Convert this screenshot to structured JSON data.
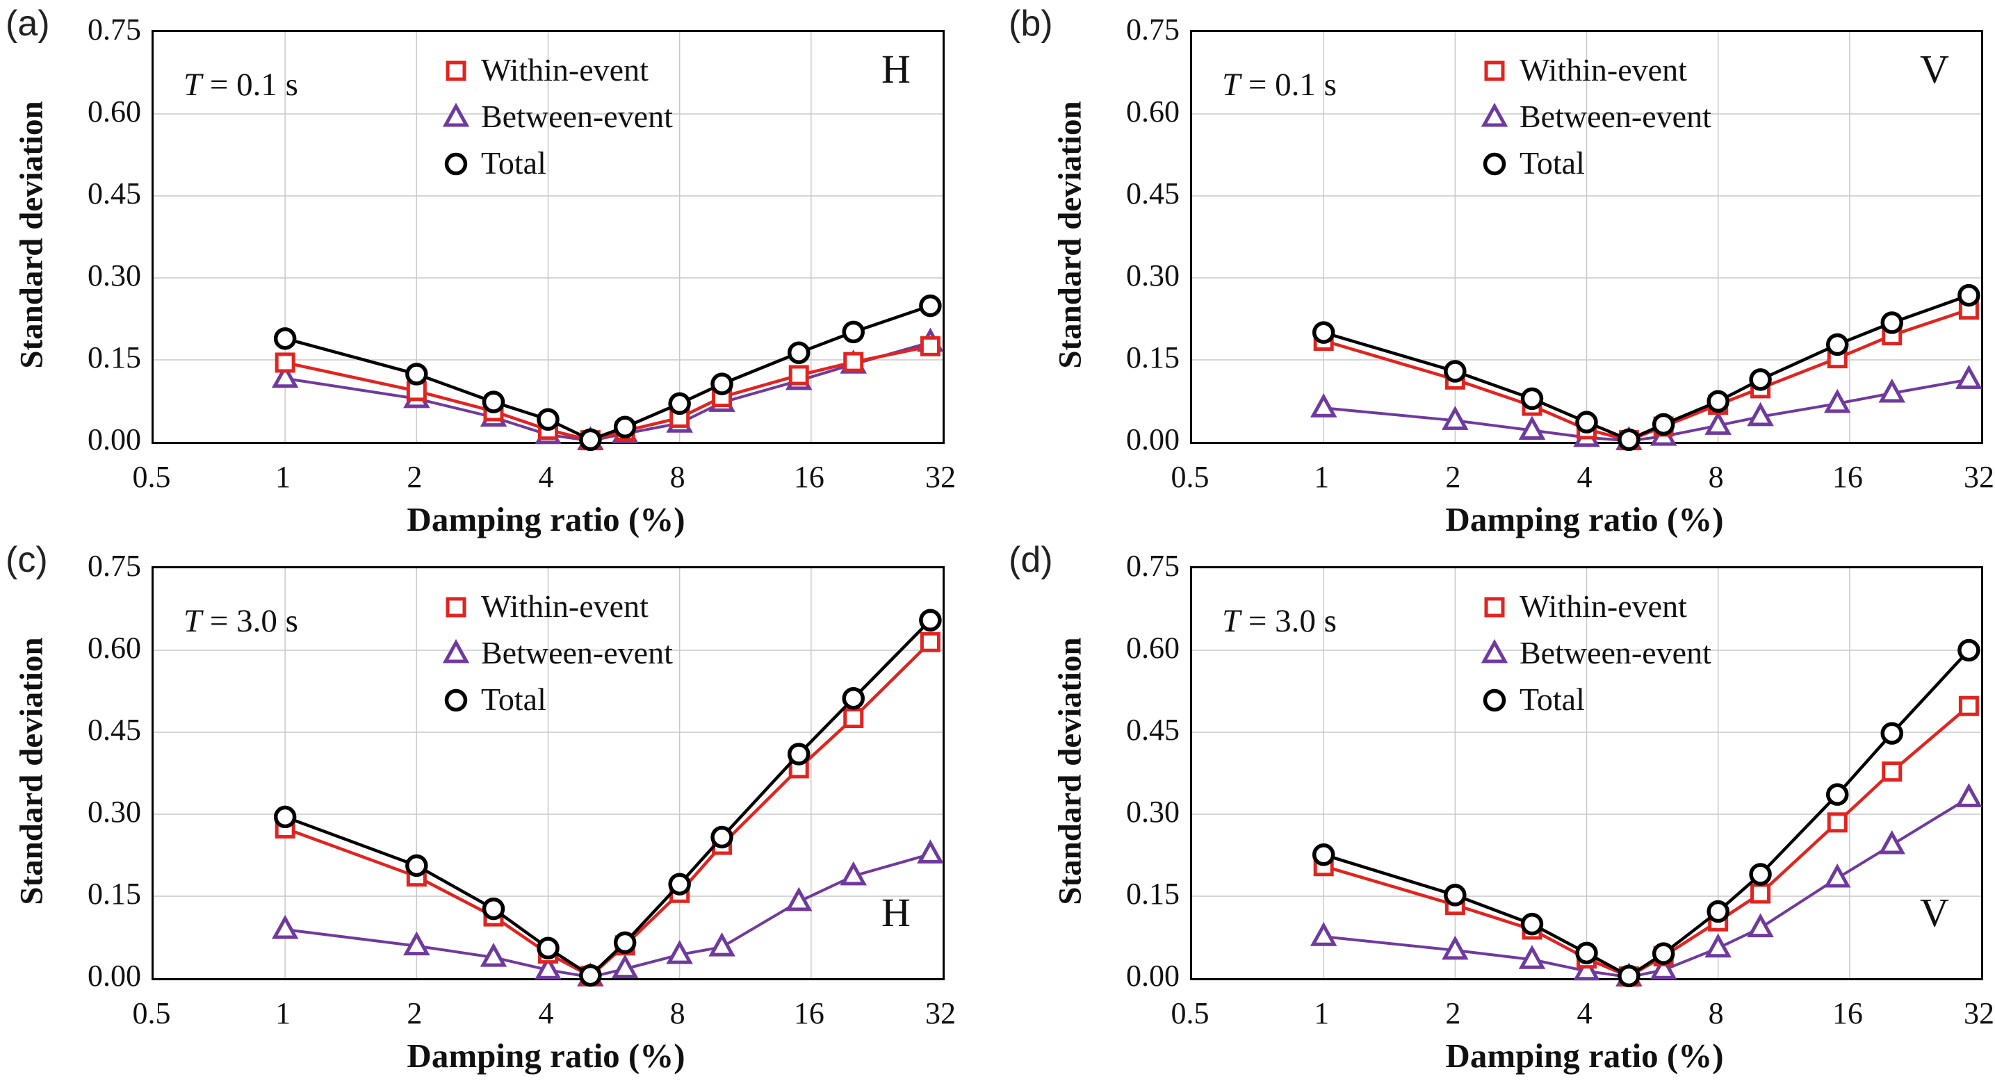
{
  "axes": {
    "x_label": "Damping ratio (%)",
    "y_label": "Standard deviation",
    "x_scale": "log2",
    "x_ticks": [
      "0.5",
      "1",
      "2",
      "4",
      "8",
      "16",
      "32"
    ],
    "x_tick_values": [
      0.5,
      1,
      2,
      4,
      8,
      16,
      32
    ],
    "y_ticks": [
      "0.00",
      "0.15",
      "0.30",
      "0.45",
      "0.60",
      "0.75"
    ],
    "y_tick_values": [
      0,
      0.15,
      0.3,
      0.45,
      0.6,
      0.75
    ],
    "xlim": [
      0.5,
      32
    ],
    "ylim": [
      0,
      0.75
    ],
    "grid": true
  },
  "legend": {
    "position": "top-center-inside",
    "items": [
      {
        "label": "Within-event",
        "marker": "square",
        "color": "#e12420"
      },
      {
        "label": "Between-event",
        "marker": "triangle",
        "color": "#6f3a9e"
      },
      {
        "label": "Total",
        "marker": "circle",
        "color": "#000000"
      }
    ]
  },
  "colors": {
    "within": "#e12420",
    "between": "#6f3a9e",
    "total": "#000000",
    "grid": "#c9c9c9",
    "text": "#111111"
  },
  "chart_data": [
    {
      "panel_label": "(a)",
      "type": "line",
      "annotation": {
        "symbol": "T",
        "text": " = 0.1 s"
      },
      "component": "H",
      "component_position": "top-right",
      "xlabel": "Damping ratio (%)",
      "ylabel": "Standard deviation",
      "x_scale": "log2",
      "xlim": [
        0.5,
        32
      ],
      "ylim": [
        0,
        0.75
      ],
      "x": [
        1,
        2,
        3,
        4,
        5,
        6,
        8,
        10,
        15,
        20,
        30
      ],
      "series": [
        {
          "name": "Within-event",
          "marker": "square",
          "color": "#e12420",
          "values": [
            0.145,
            0.093,
            0.056,
            0.022,
            0.003,
            0.02,
            0.044,
            0.082,
            0.122,
            0.146,
            0.175
          ]
        },
        {
          "name": "Between-event",
          "marker": "triangle",
          "color": "#6f3a9e",
          "values": [
            0.116,
            0.079,
            0.045,
            0.013,
            0.002,
            0.015,
            0.034,
            0.072,
            0.112,
            0.142,
            0.182
          ]
        },
        {
          "name": "Total",
          "marker": "circle",
          "color": "#000000",
          "values": [
            0.189,
            0.124,
            0.073,
            0.041,
            0.004,
            0.027,
            0.07,
            0.106,
            0.163,
            0.201,
            0.249
          ]
        }
      ]
    },
    {
      "panel_label": "(b)",
      "type": "line",
      "annotation": {
        "symbol": "T",
        "text": " = 0.1 s"
      },
      "component": "V",
      "component_position": "top-right",
      "xlabel": "Damping ratio (%)",
      "ylabel": "Standard deviation",
      "x_scale": "log2",
      "xlim": [
        0.5,
        32
      ],
      "ylim": [
        0,
        0.75
      ],
      "x": [
        1,
        2,
        3,
        4,
        5,
        6,
        8,
        10,
        15,
        20,
        30
      ],
      "series": [
        {
          "name": "Within-event",
          "marker": "square",
          "color": "#e12420",
          "values": [
            0.185,
            0.114,
            0.066,
            0.023,
            0.003,
            0.028,
            0.068,
            0.098,
            0.153,
            0.195,
            0.242
          ]
        },
        {
          "name": "Between-event",
          "marker": "triangle",
          "color": "#6f3a9e",
          "values": [
            0.062,
            0.039,
            0.021,
            0.008,
            0.002,
            0.01,
            0.03,
            0.046,
            0.07,
            0.089,
            0.114
          ]
        },
        {
          "name": "Total",
          "marker": "circle",
          "color": "#000000",
          "values": [
            0.2,
            0.129,
            0.079,
            0.036,
            0.004,
            0.032,
            0.074,
            0.114,
            0.178,
            0.218,
            0.268
          ]
        }
      ]
    },
    {
      "panel_label": "(c)",
      "type": "line",
      "annotation": {
        "symbol": "T",
        "text": " = 3.0 s"
      },
      "component": "H",
      "component_position": "bottom-right",
      "xlabel": "Damping ratio (%)",
      "ylabel": "Standard deviation",
      "x_scale": "log2",
      "xlim": [
        0.5,
        32
      ],
      "ylim": [
        0,
        0.75
      ],
      "x": [
        1,
        2,
        3,
        4,
        5,
        6,
        8,
        10,
        15,
        20,
        30
      ],
      "series": [
        {
          "name": "Within-event",
          "marker": "square",
          "color": "#e12420",
          "values": [
            0.274,
            0.186,
            0.113,
            0.045,
            0.004,
            0.06,
            0.156,
            0.244,
            0.384,
            0.476,
            0.615
          ]
        },
        {
          "name": "Between-event",
          "marker": "triangle",
          "color": "#6f3a9e",
          "values": [
            0.089,
            0.059,
            0.038,
            0.015,
            0.002,
            0.017,
            0.043,
            0.057,
            0.14,
            0.187,
            0.227
          ]
        },
        {
          "name": "Total",
          "marker": "circle",
          "color": "#000000",
          "values": [
            0.295,
            0.206,
            0.127,
            0.055,
            0.005,
            0.065,
            0.172,
            0.258,
            0.41,
            0.512,
            0.655
          ]
        }
      ]
    },
    {
      "panel_label": "(d)",
      "type": "line",
      "annotation": {
        "symbol": "T",
        "text": " = 3.0 s"
      },
      "component": "V",
      "component_position": "bottom-right",
      "xlabel": "Damping ratio (%)",
      "ylabel": "Standard deviation",
      "x_scale": "log2",
      "xlim": [
        0.5,
        32
      ],
      "ylim": [
        0,
        0.75
      ],
      "x": [
        1,
        2,
        3,
        4,
        5,
        6,
        8,
        10,
        15,
        20,
        30
      ],
      "series": [
        {
          "name": "Within-event",
          "marker": "square",
          "color": "#e12420",
          "values": [
            0.205,
            0.134,
            0.089,
            0.036,
            0.003,
            0.04,
            0.104,
            0.155,
            0.285,
            0.378,
            0.498
          ]
        },
        {
          "name": "Between-event",
          "marker": "triangle",
          "color": "#6f3a9e",
          "values": [
            0.076,
            0.051,
            0.034,
            0.013,
            0.002,
            0.015,
            0.055,
            0.092,
            0.183,
            0.244,
            0.33
          ]
        },
        {
          "name": "Total",
          "marker": "circle",
          "color": "#000000",
          "values": [
            0.226,
            0.152,
            0.099,
            0.046,
            0.004,
            0.045,
            0.122,
            0.19,
            0.336,
            0.448,
            0.6
          ]
        }
      ]
    }
  ]
}
